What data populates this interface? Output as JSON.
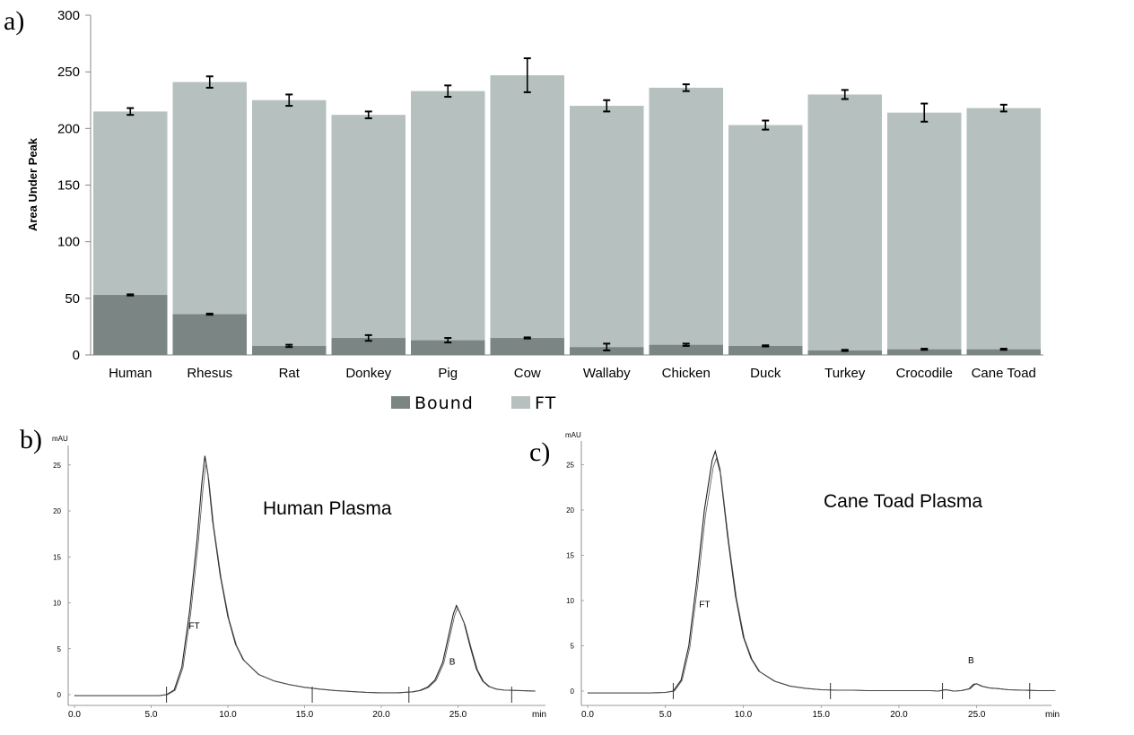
{
  "chart_data": [
    {
      "type": "bar",
      "stacked": true,
      "panel": "a)",
      "ylabel": "Area Under Peak",
      "ylim": [
        0,
        300
      ],
      "yticks": [
        0,
        50,
        100,
        150,
        200,
        250,
        300
      ],
      "categories": [
        "Human",
        "Rhesus",
        "Rat",
        "Donkey",
        "Pig",
        "Cow",
        "Wallaby",
        "Chicken",
        "Duck",
        "Turkey",
        "Crocodile",
        "Cane Toad"
      ],
      "series": [
        {
          "name": "Bound",
          "color": "#7b8584",
          "values": [
            53,
            36,
            8,
            15,
            13,
            15,
            7,
            9,
            8,
            4,
            5,
            5
          ],
          "errors": [
            0.5,
            0.5,
            1,
            2.5,
            2,
            0.5,
            3,
            1,
            0.5,
            0.5,
            0.5,
            0.5
          ]
        },
        {
          "name": "FT",
          "color": "#b5c0bf",
          "totals": [
            215,
            241,
            225,
            212,
            233,
            247,
            220,
            236,
            203,
            230,
            214,
            218
          ],
          "errors": [
            3,
            5,
            5,
            3,
            5,
            15,
            5,
            3,
            4,
            4,
            8,
            3
          ]
        }
      ],
      "legend": [
        "Bound",
        "FT"
      ],
      "legend_position": "bottom"
    },
    {
      "type": "line",
      "panel": "b)",
      "title": "Human Plasma",
      "ylabel": "mAU",
      "xlabel": "min",
      "xticks": [
        "0.0",
        "5.0",
        "10.0",
        "15.0",
        "20.0",
        "25.0"
      ],
      "yticks": [
        "0",
        "5",
        "10",
        "15",
        "20",
        "25"
      ],
      "peaks": [
        {
          "label": "FT",
          "time": 8.5,
          "height": 26
        },
        {
          "label": "B",
          "time": 24.9,
          "height": 9.7
        }
      ],
      "trace": {
        "x": [
          0,
          2,
          4,
          5.5,
          6,
          6.5,
          7,
          7.5,
          8,
          8.3,
          8.5,
          8.7,
          9,
          9.5,
          10,
          10.5,
          11,
          12,
          13,
          14,
          15,
          16,
          17,
          18,
          19,
          20,
          21,
          22,
          22.5,
          23,
          23.5,
          24,
          24.4,
          24.7,
          24.9,
          25.1,
          25.4,
          25.8,
          26.2,
          26.6,
          27,
          27.5,
          28,
          29,
          30
        ],
        "y": [
          -0.1,
          -0.1,
          -0.1,
          -0.1,
          0,
          0.5,
          3,
          9,
          17,
          23,
          26,
          24,
          19,
          13,
          8.5,
          5.5,
          3.8,
          2.2,
          1.5,
          1.1,
          0.8,
          0.6,
          0.45,
          0.35,
          0.25,
          0.2,
          0.2,
          0.3,
          0.45,
          0.8,
          1.6,
          3.5,
          6.5,
          8.8,
          9.7,
          9.0,
          7.8,
          5.2,
          2.8,
          1.5,
          0.9,
          0.6,
          0.5,
          0.45,
          0.4
        ]
      },
      "event_markers": [
        6,
        15.5,
        21.8,
        28.5
      ]
    },
    {
      "type": "line",
      "panel": "c)",
      "title": "Cane Toad Plasma",
      "ylabel": "mAU",
      "xlabel": "min",
      "xticks": [
        "0.0",
        "5.0",
        "10.0",
        "15.0",
        "20.0",
        "25.0"
      ],
      "yticks": [
        "0",
        "5",
        "10",
        "15",
        "20",
        "25"
      ],
      "peaks": [
        {
          "label": "FT",
          "time": 8.2,
          "height": 26.5
        },
        {
          "label": "B",
          "time": 24.9,
          "height": 0.8
        }
      ],
      "trace": {
        "x": [
          0,
          2,
          4,
          5,
          5.5,
          6,
          6.5,
          7,
          7.5,
          8,
          8.2,
          8.5,
          9,
          9.5,
          10,
          10.5,
          11,
          12,
          13,
          14,
          15,
          16,
          17,
          18,
          19,
          20,
          21,
          22,
          22.5,
          22.8,
          23,
          23.5,
          24,
          24.5,
          24.8,
          25,
          25.3,
          25.8,
          26.5,
          27,
          28,
          29,
          30
        ],
        "y": [
          -0.2,
          -0.2,
          -0.2,
          -0.15,
          0,
          1.2,
          5,
          12,
          20,
          25.5,
          26.5,
          24.5,
          17,
          10.5,
          6,
          3.6,
          2.2,
          1.1,
          0.55,
          0.3,
          0.15,
          0.1,
          0.1,
          0.05,
          0.05,
          0.05,
          0.05,
          0.05,
          0,
          0.1,
          0.15,
          0,
          0.05,
          0.25,
          0.75,
          0.8,
          0.55,
          0.35,
          0.25,
          0.15,
          0.1,
          0.05,
          0.05
        ]
      },
      "event_markers": [
        5.5,
        15.6,
        22.8,
        28.4
      ]
    }
  ]
}
